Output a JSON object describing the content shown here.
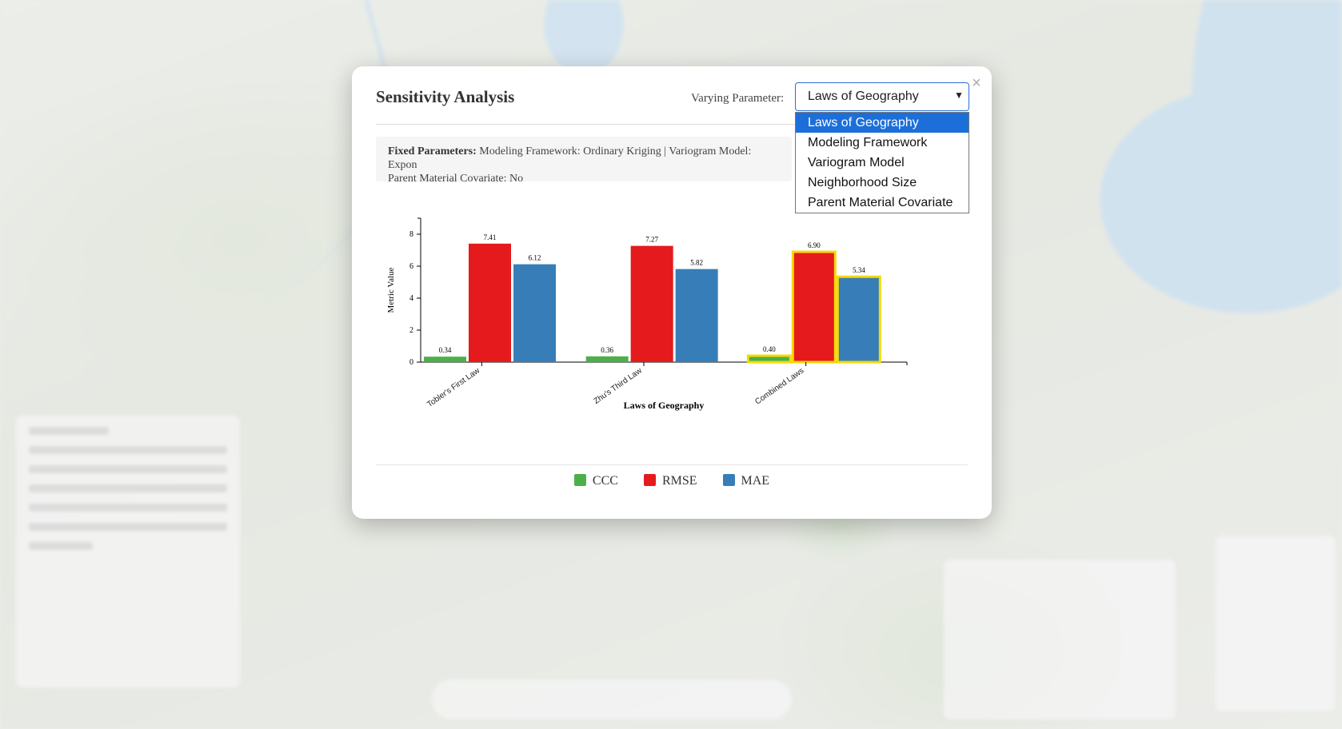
{
  "modal": {
    "title": "Sensitivity Analysis",
    "varying_label": "Varying Parameter:",
    "selected_param": "Laws of Geography",
    "close_label": "×",
    "dropdown_options": [
      "Laws of Geography",
      "Modeling Framework",
      "Variogram Model",
      "Neighborhood Size",
      "Parent Material Covariate"
    ],
    "fixed_params_label": "Fixed Parameters:",
    "fixed_params_line1": "Modeling Framework: Ordinary Kriging | Variogram Model: Expon",
    "fixed_params_line2": "Parent Material Covariate: No"
  },
  "colors": {
    "ccc": "#4daf4a",
    "rmse": "#e41a1c",
    "mae": "#377eb8",
    "highlight": "#f5d90a",
    "select_accent": "#1c6fd9"
  },
  "chart_data": {
    "type": "bar",
    "categories": [
      "Tobler's First Law",
      "Zhu's Third Law",
      "Combined Laws"
    ],
    "series": [
      {
        "name": "CCC",
        "values": [
          0.34,
          0.36,
          0.4
        ]
      },
      {
        "name": "RMSE",
        "values": [
          7.41,
          7.27,
          6.9
        ]
      },
      {
        "name": "MAE",
        "values": [
          6.12,
          5.82,
          5.34
        ]
      }
    ],
    "data_labels": [
      [
        "0.34",
        "7.41",
        "6.12"
      ],
      [
        "0.36",
        "7.27",
        "5.82"
      ],
      [
        "0.40",
        "6.90",
        "5.34"
      ]
    ],
    "highlighted_category": "Combined Laws",
    "xlabel": "Laws of Geography",
    "ylabel": "Metric Value",
    "ylim": [
      0,
      9
    ],
    "yticks": [
      0,
      2,
      4,
      6,
      8
    ],
    "legend_position": "bottom-center"
  }
}
